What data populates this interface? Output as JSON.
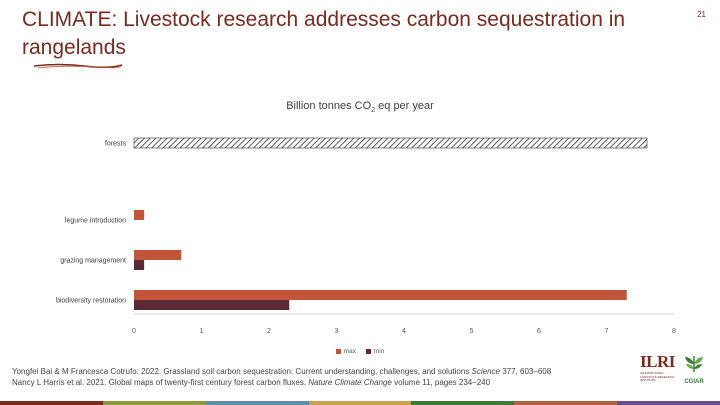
{
  "slide": {
    "title": "CLIMATE: Livestock research addresses carbon sequestration in rangelands",
    "number": "21"
  },
  "chart_data": {
    "type": "bar",
    "orientation": "horizontal",
    "title_parts": {
      "prefix": "Billion tonnes CO",
      "sub": "2",
      "suffix": " eq per year"
    },
    "categories": [
      "forests",
      "legume introduction",
      "grazing management",
      "biodiversity restoration"
    ],
    "series": [
      {
        "name": "max",
        "color": "#c0553a",
        "values": [
          null,
          0.15,
          0.7,
          7.3
        ]
      },
      {
        "name": "min",
        "color": "#5c2a36",
        "values": [
          null,
          null,
          0.15,
          2.3
        ]
      },
      {
        "name": "",
        "pattern": "hatched",
        "values": [
          7.6,
          null,
          null,
          null
        ]
      }
    ],
    "xlim": [
      0,
      8
    ],
    "xticks": [
      "0",
      "1",
      "2",
      "3",
      "4",
      "5",
      "6",
      "7",
      "8"
    ],
    "grid": false,
    "legend": "bottom"
  },
  "references": [
    {
      "pre": "Yongfei Bai & M Francesca Cotrufo. 2022. Grassland soil carbon sequestration: Current understanding, challenges, and solutions ",
      "italic": "Science",
      "post": " 377, 603–608"
    },
    {
      "pre": "Nancy L Harris et al. 2021. Global maps of twenty-first century forest carbon fluxes. ",
      "italic": "Nature Climate Change",
      "post": " volume 11, pages 234–240"
    }
  ],
  "logos": {
    "ilri": "ILRI",
    "ilri_sub": [
      "INTERNATIONAL",
      "LIVESTOCK RESEARCH",
      "INSTITUTE"
    ],
    "cgiar": "CGIAR"
  },
  "band_colors": [
    "#7a2a1f",
    "#8c9a3b",
    "#5f8fa8",
    "#c9a14a",
    "#3e7a3a",
    "#b5633e",
    "#6b4d8a"
  ]
}
